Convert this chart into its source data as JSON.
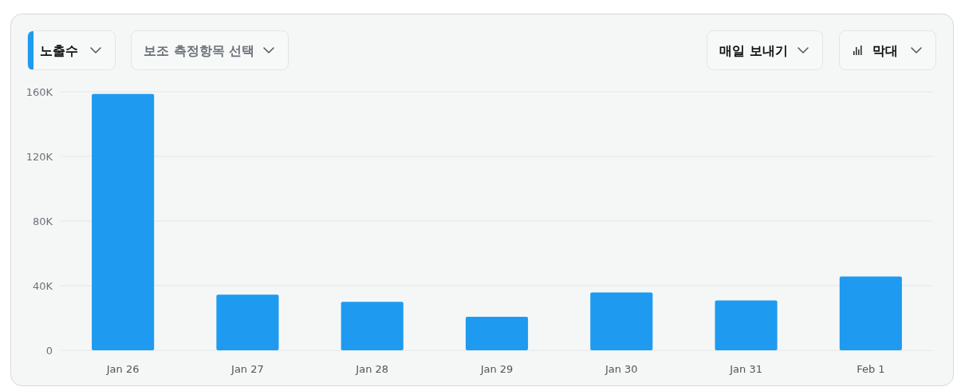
{
  "chart_data": {
    "type": "bar",
    "title": "노출수",
    "annotations": [
      "보조 측정항목 선택",
      "매일 보내기",
      "막대"
    ],
    "categories": [
      "Jan 26",
      "Jan 27",
      "Jan 28",
      "Jan 29",
      "Jan 30",
      "Jan 31",
      "Feb 1"
    ],
    "values": [
      158600,
      34500,
      30000,
      20800,
      35800,
      30900,
      45700
    ],
    "color": "#1e9bf0",
    "ylim": [
      0,
      160000
    ],
    "yticks": [
      {
        "value": 0,
        "label": "0"
      },
      {
        "value": 40000,
        "label": "40K"
      },
      {
        "value": 80000,
        "label": "80K"
      },
      {
        "value": 120000,
        "label": "120K"
      },
      {
        "value": 160000,
        "label": "160K"
      }
    ],
    "grid": "y"
  }
}
